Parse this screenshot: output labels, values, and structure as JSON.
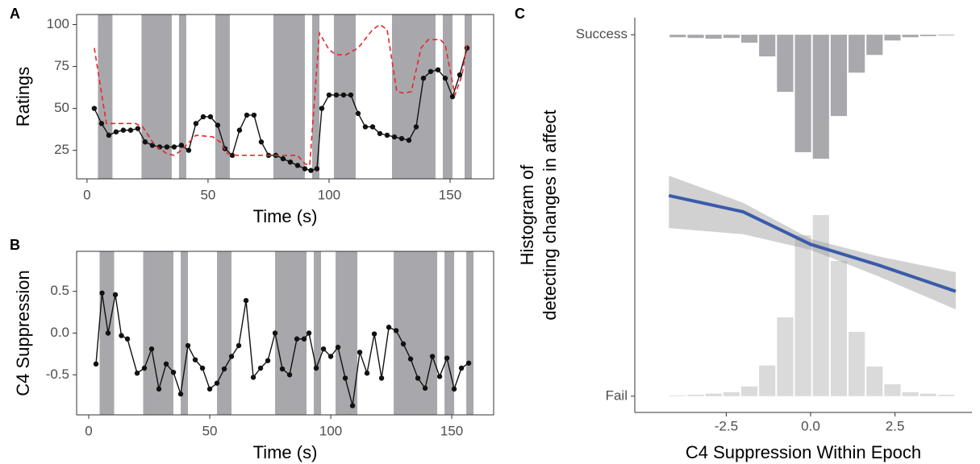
{
  "chart_data": [
    {
      "type": "line",
      "panel_label": "A",
      "xlabel": "Time (s)",
      "ylabel": "Ratings",
      "xlim": [
        -4.3,
        168
      ],
      "ylim": [
        8,
        106
      ],
      "xticks": [
        0,
        50,
        100,
        150
      ],
      "yticks": [
        25,
        50,
        75,
        100
      ],
      "shade_color": "#a8a8ac",
      "shaded_intervals": [
        [
          4.5,
          10.5
        ],
        [
          22.5,
          35
        ],
        [
          38,
          41
        ],
        [
          53,
          59
        ],
        [
          77,
          90
        ],
        [
          93,
          96
        ],
        [
          102,
          111
        ],
        [
          126,
          144
        ],
        [
          147,
          151
        ],
        [
          156,
          159
        ]
      ],
      "series": [
        {
          "color": "#111111",
          "markers": true,
          "x": [
            3,
            6,
            9,
            12,
            15,
            18,
            21,
            24,
            27,
            30,
            33,
            36,
            39,
            42,
            45,
            48,
            51,
            54,
            57,
            60,
            63,
            66,
            69,
            72,
            75,
            78,
            81,
            84,
            87,
            90,
            92.5,
            95,
            97,
            100,
            103,
            106,
            109,
            112,
            115,
            118,
            121,
            124,
            127,
            130,
            133,
            136,
            139,
            142,
            145,
            148,
            151,
            154,
            157
          ],
          "values": [
            50,
            41,
            34,
            36,
            37,
            37,
            38,
            30,
            28,
            27,
            27,
            27,
            28,
            25,
            41,
            45,
            45,
            40,
            26,
            22,
            37,
            46,
            46,
            30,
            22,
            22,
            20,
            18,
            16,
            14,
            13,
            14,
            50,
            58,
            58,
            58,
            58,
            47,
            39,
            39,
            35,
            34,
            33,
            32,
            31,
            39,
            68,
            72,
            73,
            68,
            57,
            70,
            86
          ]
        },
        {
          "color": "#e8262a",
          "dash": true,
          "x": [
            3,
            8,
            20,
            23,
            28,
            33,
            36,
            39,
            45,
            52,
            55,
            58,
            62,
            87,
            90,
            92,
            96,
            100,
            103,
            107,
            112,
            118,
            121,
            124,
            128,
            131,
            134,
            138,
            141,
            146,
            148,
            152,
            155,
            157
          ],
          "values": [
            86,
            41,
            41,
            39,
            28,
            23,
            22,
            25,
            34,
            33,
            30,
            23,
            22,
            22,
            17,
            16,
            95,
            85,
            82,
            82,
            86,
            97,
            100,
            97,
            60,
            59,
            60,
            86,
            91,
            91,
            88,
            58,
            70,
            89
          ]
        }
      ]
    },
    {
      "type": "line",
      "panel_label": "B",
      "xlabel": "Time (s)",
      "ylabel": "C4 Suppression",
      "xlim": [
        -5,
        167.3
      ],
      "ylim": [
        -0.98,
        0.98
      ],
      "xticks": [
        0,
        50,
        100,
        150
      ],
      "yticks": [
        -0.5,
        {
          "value": 0,
          "label": "0.0"
        },
        0.5
      ],
      "shade_color": "#a8a8ac",
      "shaded_intervals": [
        [
          4.5,
          10.5
        ],
        [
          22.5,
          35
        ],
        [
          38,
          41
        ],
        [
          53,
          59
        ],
        [
          77,
          90
        ],
        [
          93,
          96
        ],
        [
          102,
          111
        ],
        [
          126,
          144
        ],
        [
          147,
          151
        ],
        [
          156,
          159
        ]
      ],
      "series": [
        {
          "color": "#111111",
          "markers": true,
          "x": [
            3,
            5.5,
            8,
            11,
            13.5,
            16,
            20,
            23,
            26,
            29,
            32,
            35,
            38,
            41,
            44,
            47,
            50,
            53,
            56,
            59,
            62,
            65,
            68,
            71,
            74,
            77,
            80,
            83,
            86,
            89,
            91,
            94,
            97,
            100,
            103,
            106,
            109,
            112,
            115,
            118,
            121,
            124,
            127,
            130,
            133,
            136,
            139,
            142,
            145,
            148,
            151,
            154,
            157
          ],
          "values": [
            -0.37,
            0.48,
            0.0,
            0.46,
            -0.03,
            -0.07,
            -0.48,
            -0.42,
            -0.19,
            -0.67,
            -0.37,
            -0.47,
            -0.73,
            -0.15,
            -0.32,
            -0.42,
            -0.67,
            -0.6,
            -0.43,
            -0.28,
            -0.15,
            0.39,
            -0.53,
            -0.42,
            -0.33,
            0.0,
            -0.43,
            -0.5,
            -0.07,
            -0.07,
            0.0,
            -0.42,
            -0.19,
            -0.28,
            -0.17,
            -0.54,
            -0.87,
            -0.23,
            -0.48,
            -0.01,
            -0.54,
            0.07,
            0.03,
            -0.13,
            -0.31,
            -0.54,
            -0.66,
            -0.28,
            -0.52,
            -0.3,
            -0.67,
            -0.42,
            -0.36
          ]
        }
      ]
    },
    {
      "type": "histogram",
      "panel_label": "C",
      "xlabel": "C4 Suppression Within Epoch",
      "ylabel": [
        "Histogram of",
        "detecting changes in affect"
      ],
      "xlim": [
        -5.21,
        4.78
      ],
      "ylim": [
        -0.045,
        1.047
      ],
      "xticks": [
        -2.5,
        {
          "value": 0,
          "label": "0.0"
        },
        2.5
      ],
      "yticks": [
        {
          "value": 0,
          "label": "Fail"
        },
        {
          "value": 1,
          "label": "Success"
        }
      ],
      "bins": [
        -4.2,
        -3.67,
        -3.14,
        -2.61,
        -2.08,
        -1.55,
        -1.02,
        -0.49,
        0.04,
        0.57,
        1.1,
        1.63,
        2.16,
        2.69,
        3.22,
        3.75,
        4.28
      ],
      "series": [
        {
          "color": "#a9a9ad",
          "baseline": 1,
          "values": [
            0.007,
            0.009,
            0.011,
            0.009,
            0.022,
            0.06,
            0.158,
            0.325,
            0.343,
            0.225,
            0.105,
            0.056,
            0.016,
            0.007,
            0.004,
            0.002
          ]
        },
        {
          "color": "#dadada",
          "baseline": 0,
          "values": [
            0.002,
            0.004,
            0.007,
            0.011,
            0.027,
            0.085,
            0.218,
            0.445,
            0.501,
            0.374,
            0.178,
            0.082,
            0.033,
            0.011,
            0.007,
            0.004
          ]
        }
      ],
      "fit": {
        "color": "#3a5bab",
        "band_color": "#9a9a9a",
        "x": [
          -4.2,
          -2,
          0,
          2,
          4.3
        ],
        "values": [
          0.555,
          0.51,
          0.42,
          0.363,
          0.29
        ],
        "lower": [
          0.465,
          0.448,
          0.405,
          0.332,
          0.24
        ],
        "upper": [
          0.61,
          0.535,
          0.435,
          0.387,
          0.343
        ]
      }
    }
  ]
}
